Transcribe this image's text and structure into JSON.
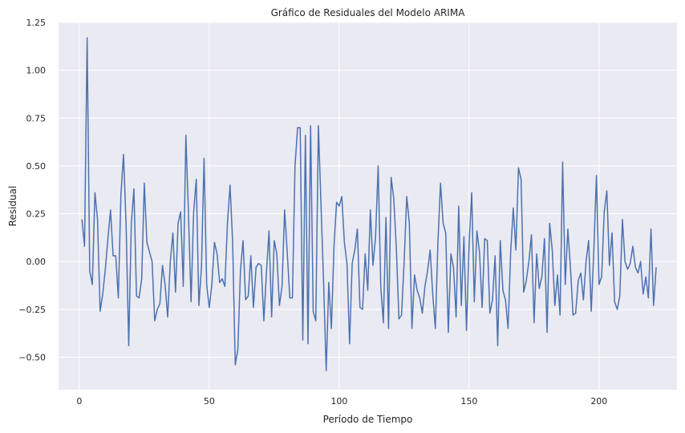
{
  "chart_data": {
    "type": "line",
    "title": "Gráfico de Residuales del Modelo ARIMA",
    "xlabel": "Período de Tiempo",
    "ylabel": "Residual",
    "xlim": [
      -8,
      230
    ],
    "ylim": [
      -0.67,
      1.25
    ],
    "xticks": [
      0,
      50,
      100,
      150,
      200
    ],
    "yticks": [
      -0.5,
      -0.25,
      0.0,
      0.25,
      0.5,
      0.75,
      1.0,
      1.25
    ],
    "ytick_labels": [
      "−0.50",
      "−0.25",
      "0.00",
      "0.25",
      "0.50",
      "0.75",
      "1.00",
      "1.25"
    ],
    "grid": true,
    "colors": {
      "line": "#4c72b0",
      "background": "#eaeaf2",
      "grid": "#ffffff"
    },
    "series": [
      {
        "x": [
          1,
          2,
          3,
          4,
          5,
          6,
          7,
          8,
          9,
          10,
          11,
          12,
          13,
          14,
          15,
          16,
          17,
          18,
          19,
          20,
          21,
          22,
          23,
          24,
          25,
          26,
          27,
          28,
          29,
          30,
          31,
          32,
          33,
          34,
          35,
          36,
          37,
          38,
          39,
          40,
          41,
          42,
          43,
          44,
          45,
          46,
          47,
          48,
          49,
          50,
          51,
          52,
          53,
          54,
          55,
          56,
          57,
          58,
          59,
          60,
          61,
          62,
          63,
          64,
          65,
          66,
          67,
          68,
          69,
          70,
          71,
          72,
          73,
          74,
          75,
          76,
          77,
          78,
          79,
          80,
          81,
          82,
          83,
          84,
          85,
          86,
          87,
          88,
          89,
          90,
          91,
          92,
          93,
          94,
          95,
          96,
          97,
          98,
          99,
          100,
          101,
          102,
          103,
          104,
          105,
          106,
          107,
          108,
          109,
          110,
          111,
          112,
          113,
          114,
          115,
          116,
          117,
          118,
          119,
          120,
          121,
          122,
          123,
          124,
          125,
          126,
          127,
          128,
          129,
          130,
          131,
          132,
          133,
          134,
          135,
          136,
          137,
          138,
          139,
          140,
          141,
          142,
          143,
          144,
          145,
          146,
          147,
          148,
          149,
          150,
          151,
          152,
          153,
          154,
          155,
          156,
          157,
          158,
          159,
          160,
          161,
          162,
          163,
          164,
          165,
          166,
          167,
          168,
          169,
          170,
          171,
          172,
          173,
          174,
          175,
          176,
          177,
          178,
          179,
          180,
          181,
          182,
          183,
          184,
          185,
          186,
          187,
          188,
          189,
          190,
          191,
          192,
          193,
          194,
          195,
          196,
          197,
          198,
          199,
          200,
          201,
          202,
          203,
          204,
          205,
          206,
          207,
          208,
          209,
          210,
          211,
          212,
          213,
          214,
          215,
          216,
          217,
          218,
          219,
          220,
          221,
          222
        ],
        "values": [
          0.22,
          0.08,
          1.17,
          -0.05,
          -0.12,
          0.36,
          0.22,
          -0.26,
          -0.17,
          -0.04,
          0.12,
          0.27,
          0.03,
          0.03,
          -0.19,
          0.35,
          0.56,
          0.19,
          -0.44,
          0.2,
          0.38,
          -0.18,
          -0.19,
          -0.09,
          0.41,
          0.1,
          0.05,
          0.0,
          -0.31,
          -0.25,
          -0.22,
          -0.02,
          -0.12,
          -0.29,
          0.0,
          0.15,
          -0.16,
          0.2,
          0.26,
          -0.13,
          0.66,
          0.25,
          -0.21,
          0.26,
          0.43,
          -0.23,
          -0.03,
          0.54,
          -0.12,
          -0.24,
          -0.12,
          0.1,
          0.04,
          -0.11,
          -0.09,
          -0.13,
          0.2,
          0.4,
          0.1,
          -0.54,
          -0.46,
          -0.05,
          0.11,
          -0.2,
          -0.18,
          0.03,
          -0.24,
          -0.03,
          -0.01,
          -0.02,
          -0.31,
          -0.06,
          0.16,
          -0.29,
          0.11,
          0.04,
          -0.23,
          -0.13,
          0.27,
          0.05,
          -0.19,
          -0.19,
          0.5,
          0.7,
          0.7,
          -0.41,
          0.66,
          -0.43,
          0.71,
          -0.26,
          -0.31,
          0.71,
          0.3,
          -0.11,
          -0.57,
          -0.11,
          -0.35,
          0.08,
          0.31,
          0.29,
          0.34,
          0.1,
          -0.01,
          -0.43,
          -0.01,
          0.06,
          0.17,
          -0.24,
          -0.25,
          0.04,
          -0.15,
          0.27,
          -0.02,
          0.13,
          0.5,
          -0.13,
          -0.32,
          0.23,
          -0.35,
          0.44,
          0.33,
          0.07,
          -0.3,
          -0.28,
          0.0,
          0.34,
          0.2,
          -0.35,
          -0.07,
          -0.15,
          -0.19,
          -0.27,
          -0.13,
          -0.05,
          0.06,
          -0.17,
          -0.35,
          0.1,
          0.41,
          0.2,
          0.15,
          -0.37,
          0.04,
          -0.03,
          -0.29,
          0.29,
          -0.23,
          0.13,
          -0.36,
          0.09,
          0.36,
          -0.21,
          0.16,
          0.05,
          -0.24,
          0.12,
          0.11,
          -0.27,
          -0.2,
          0.03,
          -0.44,
          0.11,
          -0.15,
          -0.2,
          -0.35,
          0.05,
          0.28,
          0.06,
          0.49,
          0.43,
          -0.16,
          -0.1,
          0.0,
          0.14,
          -0.32,
          0.04,
          -0.14,
          -0.08,
          0.12,
          -0.37,
          0.2,
          0.06,
          -0.23,
          -0.07,
          -0.28,
          0.52,
          -0.12,
          0.17,
          -0.03,
          -0.28,
          -0.27,
          -0.1,
          -0.06,
          -0.2,
          0.0,
          0.11,
          -0.26,
          0.06,
          0.45,
          -0.12,
          -0.08,
          0.26,
          0.37,
          -0.02,
          0.15,
          -0.21,
          -0.25,
          -0.18,
          0.22,
          0.0,
          -0.04,
          -0.01,
          0.08,
          -0.03,
          -0.06,
          0.0,
          -0.17,
          -0.08,
          -0.19,
          0.17,
          -0.23,
          -0.03
        ]
      }
    ]
  }
}
